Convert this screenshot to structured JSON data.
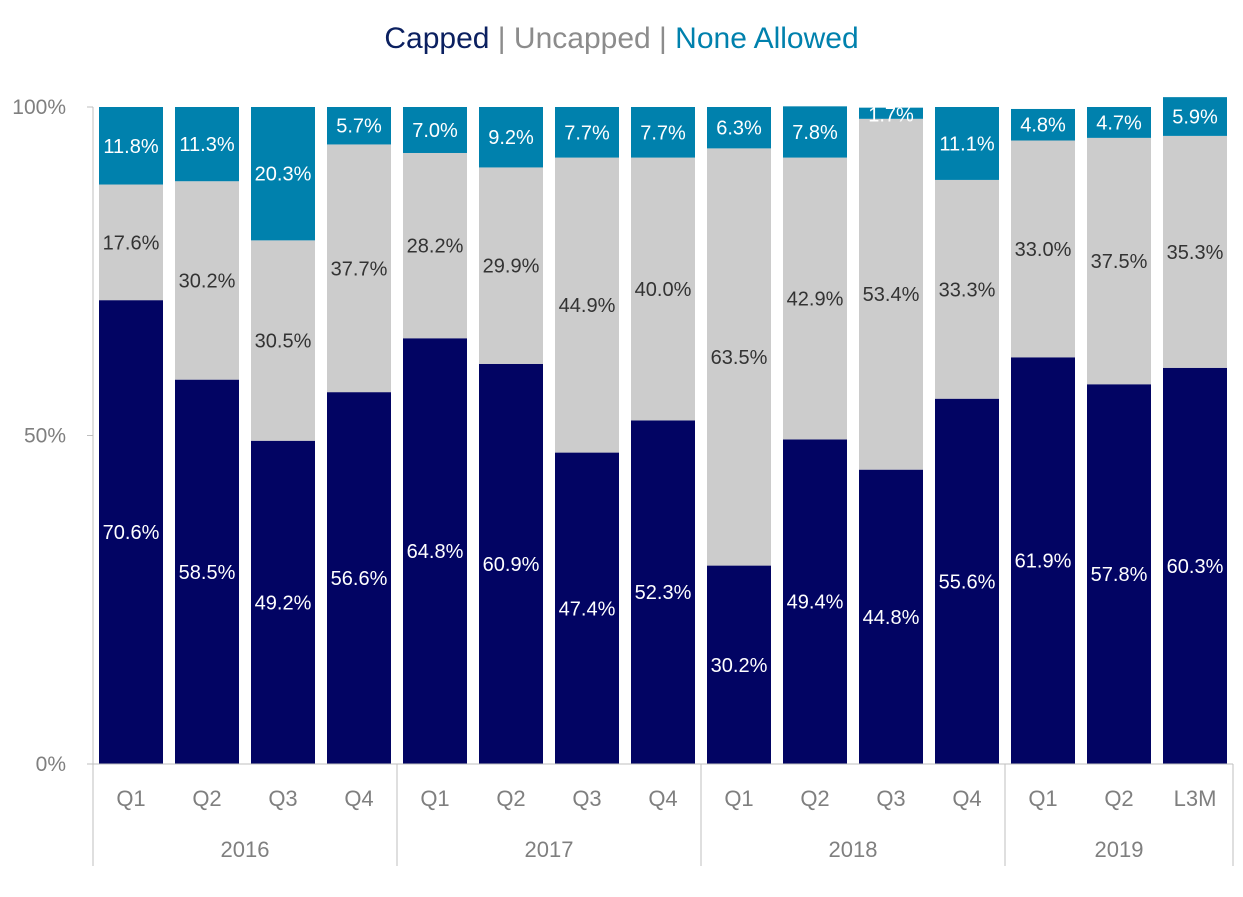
{
  "chart_data": {
    "type": "bar",
    "stacked": true,
    "percent": true,
    "title_parts": [
      {
        "text": "Capped",
        "color": "#0B2060"
      },
      {
        "text": " | ",
        "color": "#8c8c8c"
      },
      {
        "text": "Uncapped",
        "color": "#8c8c8c"
      },
      {
        "text": " | ",
        "color": "#8c8c8c"
      },
      {
        "text": "None Allowed",
        "color": "#0081AD"
      }
    ],
    "categories": [
      "Q1",
      "Q2",
      "Q3",
      "Q4",
      "Q1",
      "Q2",
      "Q3",
      "Q4",
      "Q1",
      "Q2",
      "Q3",
      "Q4",
      "Q1",
      "Q2",
      "L3M"
    ],
    "groups": [
      {
        "label": "2016",
        "count": 4
      },
      {
        "label": "2017",
        "count": 4
      },
      {
        "label": "2018",
        "count": 4
      },
      {
        "label": "2019",
        "count": 3
      }
    ],
    "series": [
      {
        "name": "Capped",
        "color": "#020463",
        "label_color": "#ffffff",
        "values": [
          70.6,
          58.5,
          49.2,
          56.6,
          64.8,
          60.9,
          47.4,
          52.3,
          30.2,
          49.4,
          44.8,
          55.6,
          61.9,
          57.8,
          60.3
        ],
        "labels": [
          "70.6%",
          "58.5%",
          "49.2%",
          "56.6%",
          "64.8%",
          "60.9%",
          "47.4%",
          "52.3%",
          "30.2%",
          "49.4%",
          "44.8%",
          "55.6%",
          "61.9%",
          "57.8%",
          "60.3%"
        ]
      },
      {
        "name": "Uncapped",
        "color": "#cccccc",
        "label_color": "#333333",
        "values": [
          17.6,
          30.2,
          30.5,
          37.7,
          28.2,
          29.9,
          44.9,
          40.0,
          63.5,
          42.9,
          53.4,
          33.3,
          33.0,
          37.5,
          35.3
        ],
        "labels": [
          "17.6%",
          "30.2%",
          "30.5%",
          "37.7%",
          "28.2%",
          "29.9%",
          "44.9%",
          "40.0%",
          "63.5%",
          "42.9%",
          "53.4%",
          "33.3%",
          "33.0%",
          "37.5%",
          "35.3%"
        ]
      },
      {
        "name": "None Allowed",
        "color": "#0081AD",
        "label_color": "#ffffff",
        "values": [
          11.8,
          11.3,
          20.3,
          5.7,
          7.0,
          9.2,
          7.7,
          7.7,
          6.3,
          7.8,
          1.7,
          11.1,
          4.8,
          4.7,
          5.9
        ],
        "labels": [
          "11.8%",
          "11.3%",
          "20.3%",
          "5.7%",
          "7.0%",
          "9.2%",
          "7.7%",
          "7.7%",
          "6.3%",
          "7.8%",
          "1.7%",
          "11.1%",
          "4.8%",
          "4.7%",
          "5.9%"
        ]
      }
    ],
    "y_ticks": [
      {
        "value": 0,
        "label": "0%"
      },
      {
        "value": 50,
        "label": "50%"
      },
      {
        "value": 100,
        "label": "100%"
      }
    ],
    "ylim": [
      0,
      100
    ],
    "grid": false,
    "legend": "none"
  }
}
